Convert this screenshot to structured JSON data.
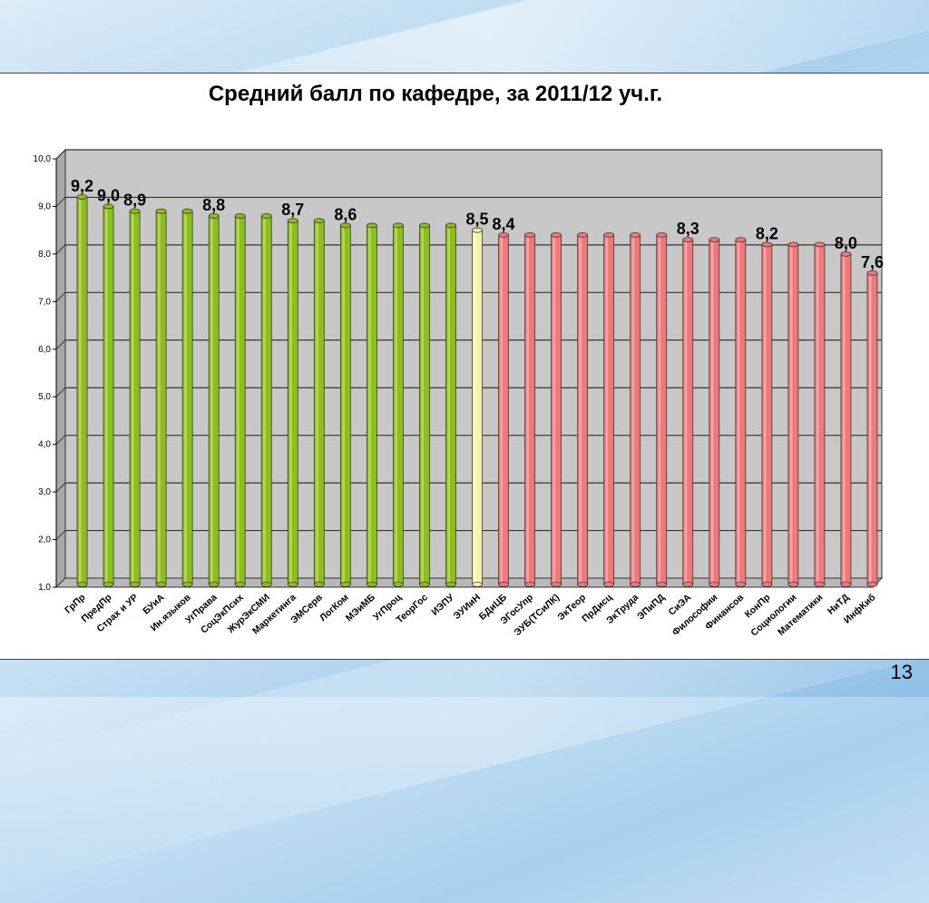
{
  "title": "Средний балл по кафедре, за 2011/12 уч.г.",
  "page_number": "13",
  "chart_data": {
    "type": "bar",
    "title": "Средний балл по кафедре, за 2011/12 уч.г.",
    "xlabel": "",
    "ylabel": "",
    "ylim": [
      1,
      10
    ],
    "ytick_labels": [
      "1,0",
      "2,0",
      "3,0",
      "4,0",
      "5,0",
      "6,0",
      "7,0",
      "8,0",
      "9,0",
      "10,0"
    ],
    "grid": true,
    "legend": "none",
    "categories": [
      "ГрПр",
      "ПредПр",
      "Страх и УР",
      "БУиА",
      "Ин.языков",
      "УгПрава",
      "СоцЭкПсих",
      "ЖурЭкСМИ",
      "Маркетинга",
      "ЭМСерв",
      "ЛогКом",
      "МЭиМБ",
      "УгПроц",
      "ТеорГос",
      "ИЭПУ",
      "ЭУИиН",
      "БДиЦБ",
      "ЭГосУпр",
      "ЭУБ(ТСиЛК)",
      "ЭкТеор",
      "ПрДисц",
      "ЭкТруда",
      "ЭПиПД",
      "СиЭА",
      "Философии",
      "Финансов",
      "КонПр",
      "Социологии",
      "Математики",
      "НиТД",
      "ИнфКиб"
    ],
    "values": [
      9.2,
      9.0,
      8.9,
      8.9,
      8.9,
      8.8,
      8.8,
      8.8,
      8.7,
      8.7,
      8.6,
      8.6,
      8.6,
      8.6,
      8.6,
      8.5,
      8.4,
      8.4,
      8.4,
      8.4,
      8.4,
      8.4,
      8.4,
      8.3,
      8.3,
      8.3,
      8.2,
      8.2,
      8.2,
      8.0,
      7.6
    ],
    "data_labels": [
      {
        "index": 0,
        "text": "9,2"
      },
      {
        "index": 1,
        "text": "9,0"
      },
      {
        "index": 2,
        "text": "8,9"
      },
      {
        "index": 5,
        "text": "8,8"
      },
      {
        "index": 8,
        "text": "8,7"
      },
      {
        "index": 10,
        "text": "8,6"
      },
      {
        "index": 15,
        "text": "8,5"
      },
      {
        "index": 16,
        "text": "8,4"
      },
      {
        "index": 23,
        "text": "8,3"
      },
      {
        "index": 26,
        "text": "8,2"
      },
      {
        "index": 29,
        "text": "8,0"
      },
      {
        "index": 30,
        "text": "7,6"
      }
    ],
    "colors": {
      "green": "#8cc016",
      "yellow": "#f5f3a6",
      "red": "#f07878",
      "plot_bg": "#c8c8c8",
      "grid": "#333333"
    },
    "bar_color_groups": [
      "green",
      "green",
      "green",
      "green",
      "green",
      "green",
      "green",
      "green",
      "green",
      "green",
      "green",
      "green",
      "green",
      "green",
      "green",
      "yellow",
      "red",
      "red",
      "red",
      "red",
      "red",
      "red",
      "red",
      "red",
      "red",
      "red",
      "red",
      "red",
      "red",
      "red",
      "red"
    ]
  }
}
